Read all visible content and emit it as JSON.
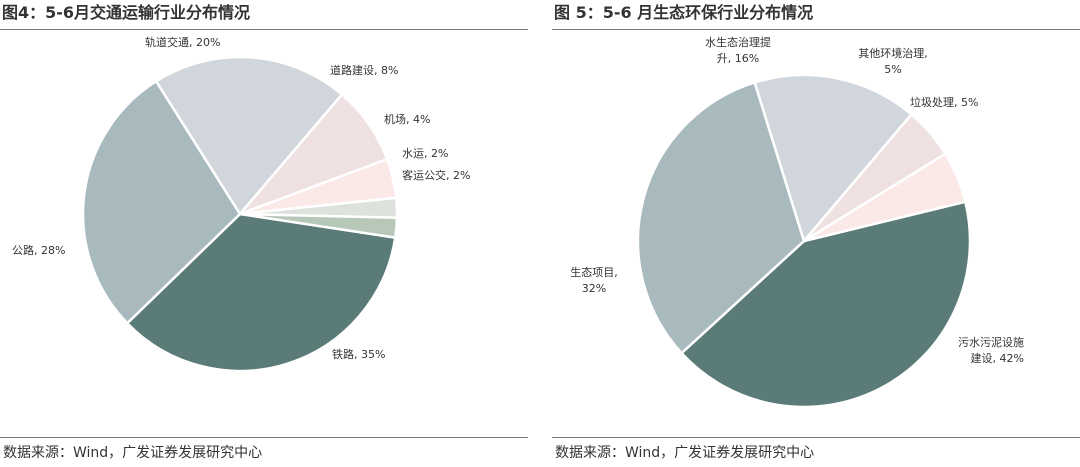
{
  "chart_data": [
    {
      "type": "pie",
      "title": "图4：5-6月交通运输行业分布情况",
      "source": "数据来源：Wind，广发证券发展研究中心",
      "slices": [
        {
          "label": [
            "铁路, 35%"
          ],
          "value": 35,
          "color": "#5b7b79"
        },
        {
          "label": [
            "公路, 28%"
          ],
          "value": 28,
          "color": "#a9babf"
        },
        {
          "label": [
            "轨道交通, 20%"
          ],
          "value": 20,
          "color": "#d0d6dc"
        },
        {
          "label": [
            "道路建设, 8%"
          ],
          "value": 8,
          "color": "#efe1e1"
        },
        {
          "label": [
            "机场, 4%"
          ],
          "value": 4,
          "color": "#fbe9e8"
        },
        {
          "label": [
            "水运, 2%"
          ],
          "value": 2,
          "color": "#dde2dd"
        },
        {
          "label": [
            "客运公交, 2%"
          ],
          "value": 2,
          "color": "#b7c8b9"
        }
      ]
    },
    {
      "type": "pie",
      "title": "图 5：5-6 月生态环保行业分布情况",
      "source": "数据来源：Wind，广发证券发展研究中心",
      "slices": [
        {
          "label": [
            "污水污泥设施",
            "建设, 42%"
          ],
          "value": 42,
          "color": "#5b7b79"
        },
        {
          "label": [
            "生态项目,",
            "32%"
          ],
          "value": 32,
          "color": "#a9babf"
        },
        {
          "label": [
            "水生态治理提",
            "升, 16%"
          ],
          "value": 16,
          "color": "#d0d6dc"
        },
        {
          "label": [
            "其他环境治理,",
            "5%"
          ],
          "value": 5,
          "color": "#efe1e1"
        },
        {
          "label": [
            "垃圾处理, 5%"
          ],
          "value": 5,
          "color": "#fbe9e8"
        }
      ]
    }
  ]
}
